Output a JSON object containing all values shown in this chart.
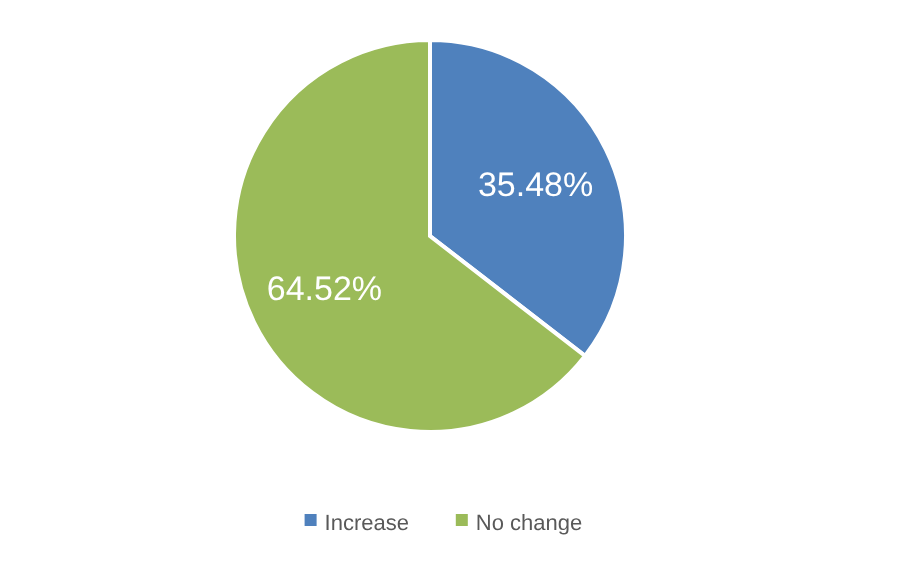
{
  "chart_data": {
    "type": "pie",
    "categories": [
      "Increase",
      "No change"
    ],
    "values": [
      35.48,
      64.52
    ],
    "colors": [
      "#4f81bd",
      "#9bbb59"
    ],
    "value_labels": [
      "35.48%",
      "64.52%"
    ],
    "legend": "bottom"
  }
}
